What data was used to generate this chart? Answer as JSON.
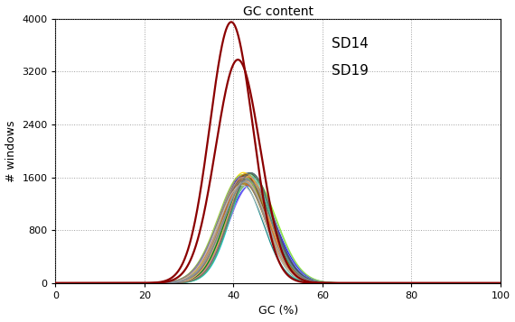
{
  "title": "GC content",
  "xlabel": "GC (%)",
  "ylabel": "# windows",
  "xlim": [
    0,
    100
  ],
  "ylim": [
    0,
    4000
  ],
  "xticks": [
    0,
    20,
    40,
    60,
    80,
    100
  ],
  "yticks": [
    0,
    800,
    1600,
    2400,
    3200,
    4000
  ],
  "sd14_peak": 39.5,
  "sd14_max": 3950,
  "sd14_std": 4.8,
  "sd19_peak": 41.0,
  "sd19_max": 3380,
  "sd19_std": 5.0,
  "cluster_peak": 43.0,
  "cluster_max": 1580,
  "cluster_std": 5.0,
  "cluster_colors": [
    "#000080",
    "#0000cd",
    "#0000ff",
    "#1e90ff",
    "#00bfff",
    "#00ced1",
    "#20b2aa",
    "#008080",
    "#006400",
    "#228b22",
    "#32cd32",
    "#7cfc00",
    "#adff2f",
    "#ffff00",
    "#ffd700",
    "#ffa500",
    "#ff8c00",
    "#ff6347",
    "#00fa9a",
    "#00ff7f",
    "#40e0d0",
    "#48d1cc",
    "#5f9ea0",
    "#4682b4",
    "#6495ed",
    "#7b68ee",
    "#6a5acd",
    "#483d8b",
    "#2f4f4f",
    "#556b2f",
    "#8fbc8f",
    "#66cdaa",
    "#3cb371",
    "#2e8b57",
    "#008000",
    "#9acd32",
    "#b8860b",
    "#daa520",
    "#cd853f",
    "#8b4513",
    "#a0522d",
    "#d2691e",
    "#bc8f8f",
    "#f4a460",
    "#deb887",
    "#c0c0c0",
    "#808080",
    "#696969",
    "#a9a9a9",
    "#778899"
  ],
  "background_color": "#ffffff",
  "grid_color": "#888888"
}
